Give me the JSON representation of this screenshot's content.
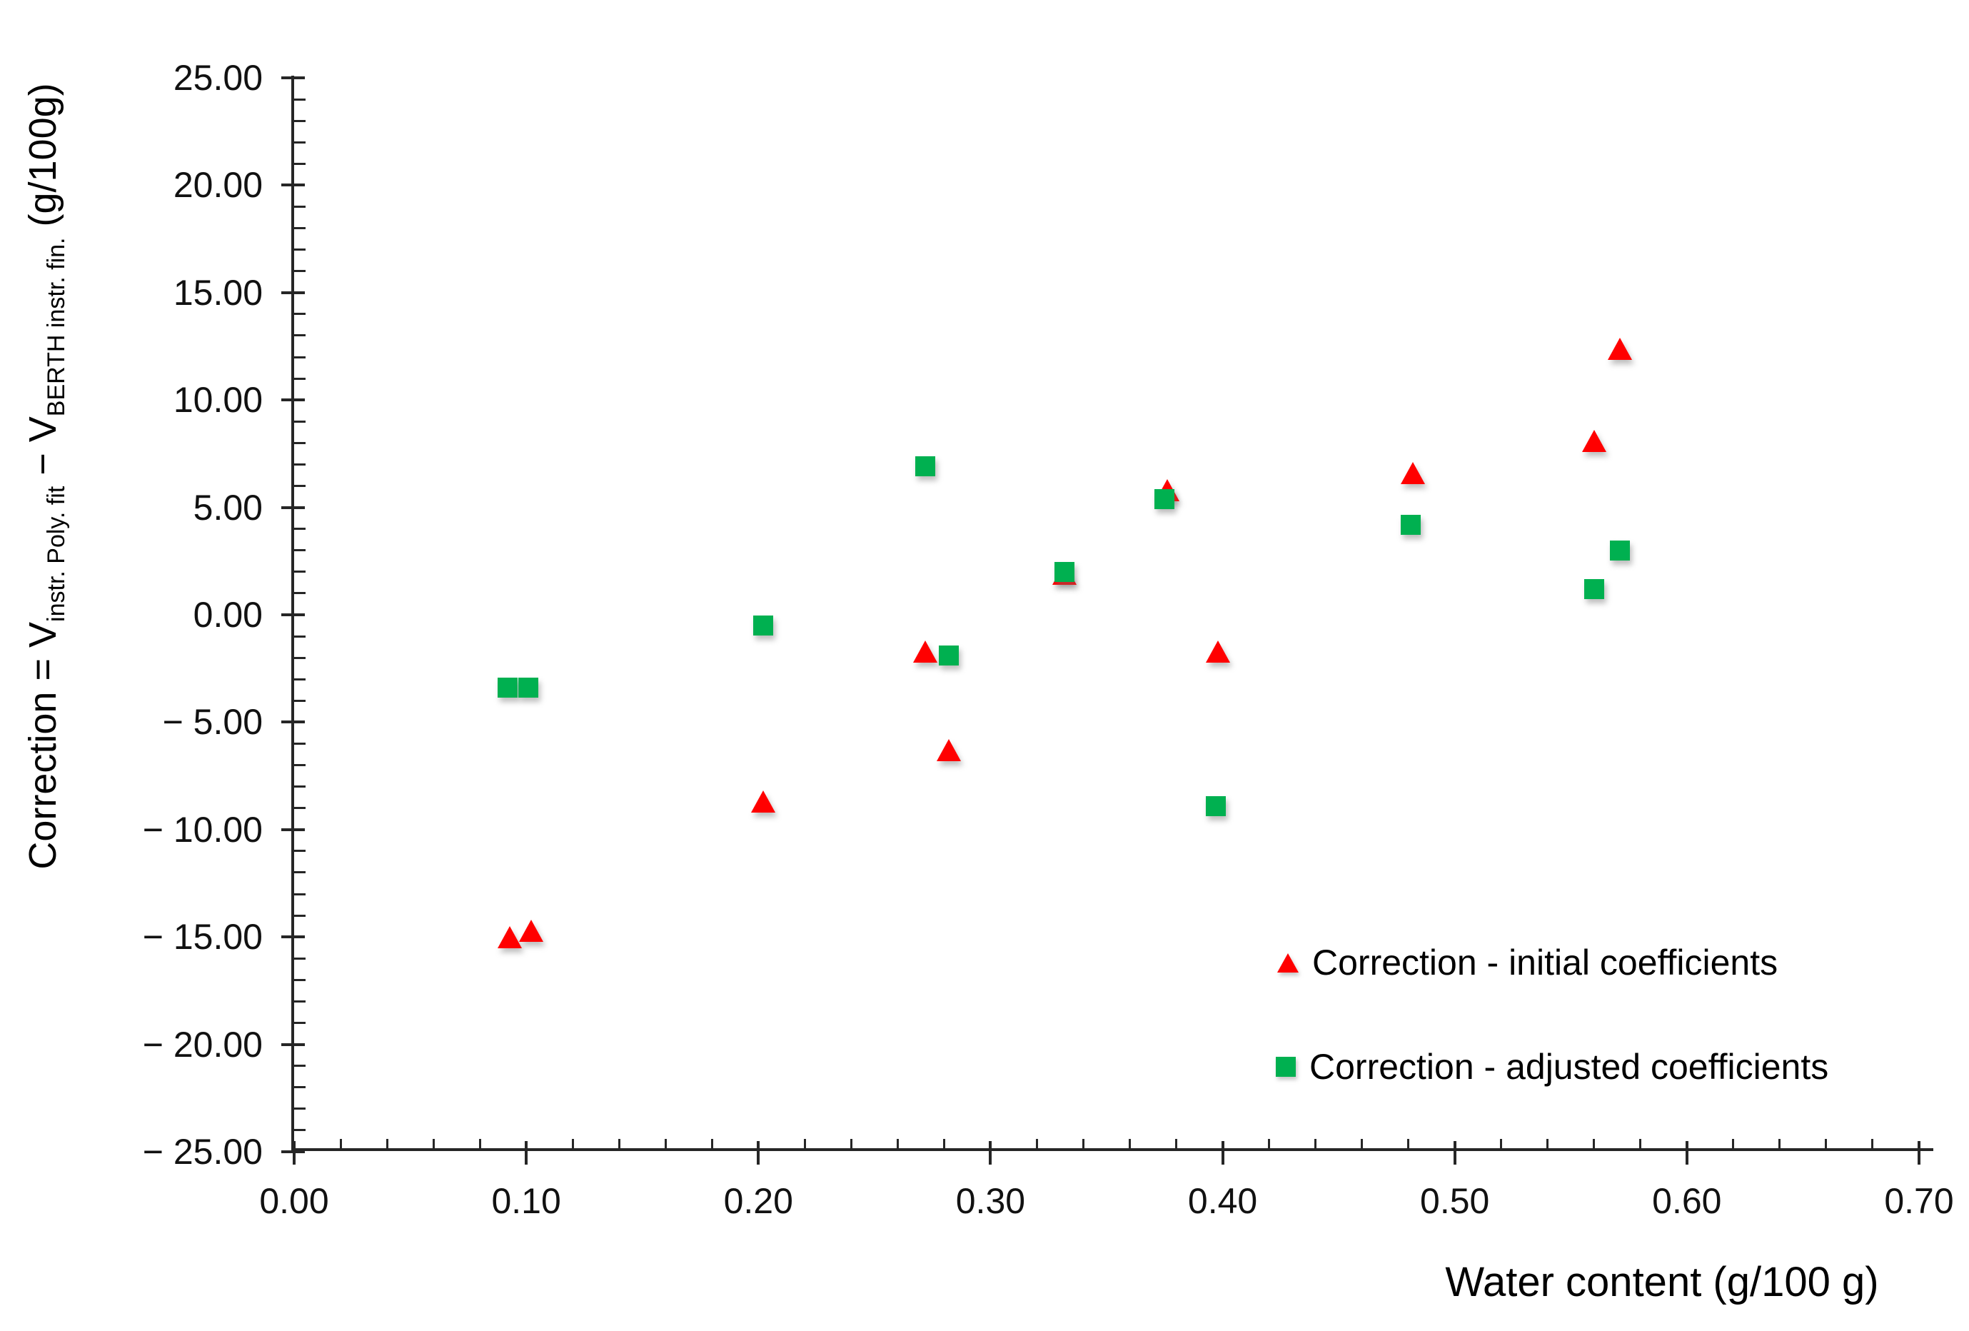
{
  "chart_data": {
    "type": "scatter",
    "title": "",
    "xlabel": "Water content (g/100 g)",
    "ylabel": "Correction = V instr. Poly. fit − V BERTH instr. fin. (g/100g)",
    "ylabel_parts": {
      "main": "Correction = V",
      "sub1": "instr. Poly. fit",
      "mid": " − V",
      "sub2": "BERTH instr. fin.",
      "end": " (g/100g)"
    },
    "xlim": [
      0.0,
      0.7
    ],
    "ylim": [
      -25.0,
      25.0
    ],
    "x_major_step": 0.1,
    "x_minor_step": 0.02,
    "y_major_step": 5.0,
    "y_minor_step": 1.0,
    "grid": false,
    "legend_position": "inside-bottom-right",
    "x_ticks": [
      {
        "v": 0.0,
        "label": "0.00"
      },
      {
        "v": 0.1,
        "label": "0.10"
      },
      {
        "v": 0.2,
        "label": "0.20"
      },
      {
        "v": 0.3,
        "label": "0.30"
      },
      {
        "v": 0.4,
        "label": "0.40"
      },
      {
        "v": 0.5,
        "label": "0.50"
      },
      {
        "v": 0.6,
        "label": "0.60"
      },
      {
        "v": 0.7,
        "label": "0.70"
      }
    ],
    "y_ticks": [
      {
        "v": 25,
        "label": "25.00"
      },
      {
        "v": 20,
        "label": "20.00"
      },
      {
        "v": 15,
        "label": "15.00"
      },
      {
        "v": 10,
        "label": "10.00"
      },
      {
        "v": 5,
        "label": "5.00"
      },
      {
        "v": 0,
        "label": "0.00"
      },
      {
        "v": -5,
        "label": "− 5.00"
      },
      {
        "v": -10,
        "label": "− 10.00"
      },
      {
        "v": -15,
        "label": "− 15.00"
      },
      {
        "v": -20,
        "label": "− 20.00"
      },
      {
        "v": -25,
        "label": "− 25.00"
      }
    ],
    "series": [
      {
        "name": "Correction - initial coefficients",
        "marker": "triangle",
        "color": "#ff0000",
        "points": [
          [
            0.093,
            -15.0
          ],
          [
            0.102,
            -14.7
          ],
          [
            0.202,
            -8.7
          ],
          [
            0.272,
            -1.7
          ],
          [
            0.282,
            -6.3
          ],
          [
            0.332,
            1.9
          ],
          [
            0.376,
            5.8
          ],
          [
            0.398,
            -1.7
          ],
          [
            0.482,
            6.6
          ],
          [
            0.56,
            8.1
          ],
          [
            0.571,
            12.4
          ]
        ]
      },
      {
        "name": "Correction - adjusted coefficients",
        "marker": "square",
        "color": "#00b050",
        "points": [
          [
            0.092,
            -3.4
          ],
          [
            0.101,
            -3.4
          ],
          [
            0.202,
            -0.5
          ],
          [
            0.272,
            6.9
          ],
          [
            0.282,
            -1.9
          ],
          [
            0.332,
            2.0
          ],
          [
            0.375,
            5.4
          ],
          [
            0.397,
            -8.9
          ],
          [
            0.481,
            4.2
          ],
          [
            0.56,
            1.2
          ],
          [
            0.571,
            3.0
          ]
        ]
      }
    ]
  }
}
